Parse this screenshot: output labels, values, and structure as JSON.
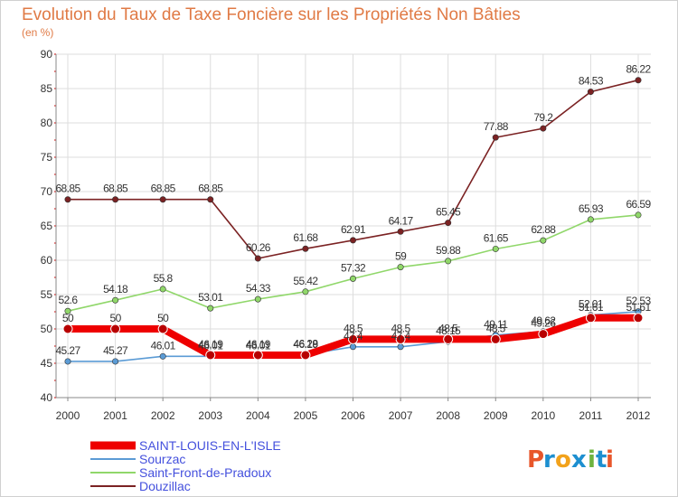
{
  "chart_data": {
    "type": "line",
    "title": "Evolution du Taux de Taxe Foncière sur les Propriétés Non Bâties",
    "subtitle": "(en %)",
    "xlabel": "",
    "ylabel": "",
    "ylim": [
      40,
      90
    ],
    "yticks": [
      40,
      45,
      50,
      55,
      60,
      65,
      70,
      75,
      80,
      85,
      90
    ],
    "x": [
      "2000",
      "2001",
      "2002",
      "2003",
      "2004",
      "2005",
      "2006",
      "2007",
      "2008",
      "2009",
      "2010",
      "2011",
      "2012"
    ],
    "grid": true,
    "legend_position": "bottom-left",
    "series": [
      {
        "name": "Douzillac",
        "color": "#7b2223",
        "values": [
          68.85,
          68.85,
          68.85,
          68.85,
          60.26,
          61.68,
          62.91,
          64.17,
          65.45,
          77.88,
          79.2,
          84.53,
          86.22
        ],
        "labels": [
          "68.85",
          "68.85",
          "68.85",
          "68.85",
          "60.26",
          "61.68",
          "62.91",
          "64.17",
          "65.45",
          "77.88",
          "79.2",
          "84.53",
          "86.22"
        ]
      },
      {
        "name": "Saint-Front-de-Pradoux",
        "color": "#90d76a",
        "values": [
          52.6,
          54.18,
          55.8,
          53.01,
          54.33,
          55.42,
          57.32,
          59,
          59.88,
          61.65,
          62.88,
          65.93,
          66.59
        ],
        "labels": [
          "52.6",
          "54.18",
          "55.8",
          "53.01",
          "54.33",
          "55.42",
          "57.32",
          "59",
          "59.88",
          "61.65",
          "62.88",
          "65.93",
          "66.59"
        ]
      },
      {
        "name": "Sourzac",
        "color": "#5b9bd5",
        "values": [
          45.27,
          45.27,
          46.01,
          46.01,
          46.01,
          46.28,
          47.4,
          47.4,
          48.15,
          49.11,
          49.62,
          52.01,
          52.53
        ],
        "labels": [
          "45.27",
          "45.27",
          "46.01",
          "46.01",
          "46.01",
          "46.28",
          "47.4",
          "47.4",
          "48.15",
          "49.11",
          "49.62",
          "52.01",
          "52.53"
        ]
      },
      {
        "name": "SAINT-LOUIS-EN-L'ISLE",
        "color": "#ee0000",
        "values": [
          50,
          50,
          50,
          46.19,
          46.19,
          46.19,
          48.5,
          48.5,
          48.5,
          48.5,
          49.26,
          51.61,
          51.61
        ],
        "labels": [
          "50",
          "50",
          "50",
          "46.19",
          "46.19",
          "46.19",
          "48.5",
          "48.5",
          "48.5",
          "48.5",
          "49.26",
          "51.61",
          "51.61"
        ]
      }
    ],
    "legend": [
      "SAINT-LOUIS-EN-L'ISLE",
      "Sourzac",
      "Saint-Front-de-Pradoux",
      "Douzillac"
    ]
  },
  "logo": {
    "text": "Proxiti",
    "letter_colors": [
      "#e8562a",
      "#1d8fd0",
      "#f2a21b",
      "#1d8fd0",
      "#6db33f",
      "#1d8fd0",
      "#e8562a"
    ]
  }
}
